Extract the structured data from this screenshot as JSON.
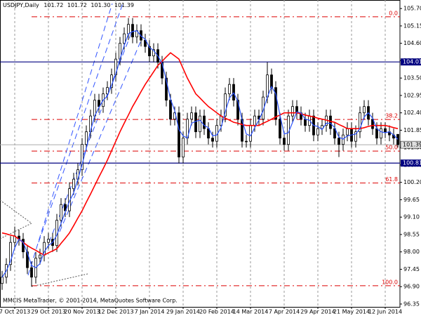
{
  "chart_data": {
    "type": "candlestick",
    "title": "USDJPY,Daily",
    "header_values": [
      "101.72",
      "101.72",
      "101.30",
      "101.39"
    ],
    "footer": "MMCIS MetaTrader, © 2001-2014, MetaQuotes Software Corp.",
    "categories": [
      null,
      null,
      null,
      "7 Oct 2013",
      null,
      null,
      null,
      null,
      null,
      null,
      null,
      "29 Oct 2013",
      null,
      null,
      null,
      null,
      null,
      null,
      null,
      "20 Nov 2013",
      null,
      null,
      null,
      null,
      null,
      null,
      null,
      "12 Dec 2013",
      null,
      null,
      null,
      null,
      null,
      null,
      null,
      "7 Jan 2014",
      null,
      null,
      null,
      null,
      null,
      null,
      null,
      "29 Jan 2014",
      null,
      null,
      null,
      null,
      null,
      null,
      null,
      "20 Feb 2014",
      null,
      null,
      null,
      null,
      null,
      null,
      null,
      "14 Mar 2014",
      null,
      null,
      null,
      null,
      null,
      null,
      null,
      "7 Apr 2014",
      null,
      null,
      null,
      null,
      null,
      null,
      null,
      "29 Apr 2014",
      null,
      null,
      null,
      null,
      null,
      null,
      null,
      "21 May 2014",
      null,
      null,
      null,
      null,
      null,
      null,
      null,
      "12 Jun 2014",
      null,
      null,
      null
    ],
    "open": [
      97.0,
      97.2,
      97.6,
      98.3,
      98.5,
      98.4,
      98.0,
      97.5,
      97.2,
      97.8,
      97.9,
      98.3,
      98.4,
      98.2,
      99.0,
      99.5,
      99.3,
      100.0,
      100.3,
      100.6,
      101.4,
      101.8,
      102.3,
      102.8,
      102.6,
      103.0,
      103.2,
      103.6,
      104.1,
      104.6,
      104.9,
      105.2,
      104.8,
      105.0,
      104.7,
      104.5,
      104.2,
      104.4,
      104.0,
      103.5,
      102.8,
      102.2,
      102.4,
      101.0,
      101.6,
      102.2,
      102.4,
      101.8,
      102.3,
      101.9,
      101.6,
      101.5,
      102.0,
      102.3,
      103.0,
      103.3,
      102.8,
      102.2,
      101.5,
      101.5,
      102.0,
      102.3,
      102.2,
      102.9,
      103.6,
      103.2,
      102.2,
      101.6,
      101.4,
      102.3,
      102.6,
      102.4,
      102.2,
      102.0,
      102.3,
      101.7,
      101.9,
      102.0,
      102.3,
      101.9,
      101.6,
      101.4,
      101.7,
      101.9,
      101.5,
      101.8,
      102.4,
      102.6,
      102.2,
      101.9,
      101.6,
      101.9,
      101.8,
      101.7,
      101.72
    ],
    "high": [
      97.4,
      97.8,
      98.5,
      98.8,
      98.7,
      98.6,
      98.2,
      97.7,
      98.0,
      98.1,
      98.5,
      98.6,
      98.6,
      99.2,
      99.7,
      99.7,
      100.2,
      100.5,
      100.8,
      101.6,
      102.0,
      102.5,
      103.0,
      103.0,
      103.2,
      103.4,
      103.8,
      104.3,
      104.8,
      105.1,
      105.4,
      105.4,
      105.2,
      105.2,
      104.9,
      104.7,
      104.6,
      104.6,
      104.2,
      103.7,
      103.0,
      102.6,
      102.6,
      101.8,
      102.4,
      102.6,
      102.6,
      102.5,
      102.5,
      102.1,
      101.8,
      102.2,
      102.5,
      103.2,
      103.5,
      103.5,
      103.0,
      102.4,
      101.7,
      102.2,
      102.5,
      102.5,
      103.1,
      104.0,
      103.8,
      103.4,
      102.4,
      101.8,
      102.5,
      102.8,
      102.8,
      102.6,
      102.4,
      102.5,
      102.5,
      102.1,
      102.2,
      102.5,
      102.5,
      102.1,
      101.8,
      101.9,
      102.1,
      102.1,
      102.0,
      102.6,
      102.8,
      102.8,
      102.4,
      102.1,
      102.1,
      102.1,
      102.0,
      101.9,
      101.72
    ],
    "low": [
      96.8,
      97.0,
      97.4,
      98.1,
      98.2,
      97.8,
      97.3,
      96.9,
      97.0,
      97.6,
      97.7,
      98.1,
      98.0,
      98.0,
      98.8,
      99.1,
      99.1,
      99.8,
      100.1,
      100.4,
      101.2,
      101.6,
      102.1,
      102.4,
      102.4,
      102.8,
      103.0,
      103.4,
      103.9,
      104.4,
      104.7,
      104.6,
      104.6,
      104.5,
      104.3,
      104.0,
      104.0,
      103.8,
      103.3,
      102.6,
      102.0,
      102.0,
      100.8,
      100.8,
      101.4,
      102.0,
      101.6,
      101.6,
      101.7,
      101.4,
      101.3,
      101.3,
      101.8,
      102.1,
      102.8,
      102.6,
      102.0,
      101.3,
      101.3,
      101.3,
      101.8,
      102.0,
      102.0,
      102.7,
      103.0,
      102.0,
      101.4,
      101.2,
      101.2,
      102.1,
      102.2,
      102.0,
      101.8,
      101.8,
      101.5,
      101.5,
      101.7,
      101.8,
      101.7,
      101.4,
      101.0,
      101.2,
      101.5,
      101.3,
      101.3,
      101.6,
      102.2,
      102.0,
      101.7,
      101.4,
      101.4,
      101.6,
      101.5,
      101.4,
      101.3
    ],
    "close": [
      97.2,
      97.6,
      98.3,
      98.5,
      98.4,
      98.0,
      97.5,
      97.2,
      97.8,
      97.9,
      98.3,
      98.4,
      98.2,
      99.0,
      99.5,
      99.3,
      100.0,
      100.3,
      100.6,
      101.4,
      101.8,
      102.3,
      102.8,
      102.6,
      103.0,
      103.2,
      103.6,
      104.1,
      104.6,
      104.9,
      105.2,
      104.8,
      105.0,
      104.7,
      104.5,
      104.2,
      104.4,
      104.0,
      103.5,
      102.8,
      102.2,
      102.4,
      101.0,
      101.6,
      102.2,
      102.4,
      101.8,
      102.3,
      101.9,
      101.6,
      101.5,
      102.0,
      102.3,
      103.0,
      103.3,
      102.8,
      102.2,
      101.5,
      101.5,
      102.0,
      102.3,
      102.2,
      102.9,
      103.6,
      103.2,
      102.2,
      101.6,
      101.4,
      102.3,
      102.6,
      102.4,
      102.2,
      102.0,
      102.3,
      101.7,
      101.9,
      102.0,
      102.3,
      101.9,
      101.6,
      101.4,
      101.7,
      101.9,
      101.5,
      101.8,
      102.4,
      102.6,
      102.2,
      101.9,
      101.6,
      101.9,
      101.8,
      101.7,
      101.6,
      101.39
    ],
    "lines": [
      {
        "color": "#ff0000",
        "values": [
          98.6,
          98.57,
          98.53,
          98.5,
          98.4,
          98.3,
          98.2,
          98.12,
          98.05,
          97.97,
          97.9,
          97.97,
          98.03,
          98.1,
          98.27,
          98.43,
          98.6,
          98.83,
          99.07,
          99.3,
          99.57,
          99.83,
          100.1,
          100.37,
          100.63,
          100.9,
          101.2,
          101.5,
          101.8,
          102.07,
          102.33,
          102.6,
          102.83,
          103.07,
          103.3,
          103.5,
          103.7,
          103.9,
          104.03,
          104.17,
          104.3,
          104.2,
          104.1,
          103.8,
          103.5,
          103.25,
          103.0,
          102.87,
          102.73,
          102.6,
          102.5,
          102.4,
          102.3,
          102.23,
          102.17,
          102.1,
          102.07,
          102.03,
          102.0,
          102.0,
          102.0,
          102.0,
          102.07,
          102.13,
          102.2,
          102.27,
          102.33,
          102.4,
          102.4,
          102.4,
          102.4,
          102.37,
          102.33,
          102.3,
          102.27,
          102.23,
          102.2,
          102.17,
          102.13,
          102.1,
          102.03,
          101.97,
          101.9,
          101.9,
          101.9,
          101.9,
          101.93,
          101.97,
          102.0,
          102.0,
          102.0,
          102.0,
          101.97,
          101.93,
          101.9
        ]
      },
      {
        "color": "#2a52ff",
        "values": [
          97.2,
          97.4,
          97.7,
          98.13,
          98.4,
          98.3,
          97.97,
          97.57,
          97.5,
          97.63,
          98.0,
          98.2,
          98.3,
          98.53,
          98.9,
          99.27,
          99.6,
          99.87,
          100.3,
          100.77,
          101.27,
          101.83,
          102.3,
          102.57,
          102.8,
          102.93,
          103.27,
          103.63,
          104.1,
          104.53,
          104.9,
          104.97,
          105.0,
          104.83,
          104.73,
          104.47,
          104.37,
          104.2,
          103.97,
          103.43,
          102.83,
          102.47,
          101.87,
          101.67,
          101.6,
          102.07,
          102.13,
          102.17,
          102.0,
          101.93,
          101.67,
          101.7,
          101.93,
          102.43,
          102.87,
          103.03,
          102.77,
          102.17,
          101.73,
          101.67,
          101.93,
          102.17,
          102.47,
          102.9,
          103.23,
          103.0,
          102.33,
          101.73,
          101.77,
          102.1,
          102.43,
          102.4,
          102.2,
          102.17,
          102.0,
          101.97,
          101.87,
          102.07,
          102.07,
          101.93,
          101.63,
          101.57,
          101.67,
          101.7,
          101.73,
          101.9,
          102.27,
          102.4,
          102.23,
          101.9,
          101.8,
          101.77,
          101.8,
          101.7,
          101.56
        ]
      }
    ],
    "levels": [
      104.01,
      100.81
    ],
    "level_color": "#000080",
    "bid": 101.39,
    "fib_color": "#dd0000",
    "fib_levels": [
      {
        "value": 105.44,
        "label": "0.0"
      },
      {
        "value": 102.19,
        "label": "38.2"
      },
      {
        "value": 101.19,
        "label": "50.0"
      },
      {
        "value": 100.18,
        "label": "61.8"
      },
      {
        "value": 96.93,
        "label": "100.0"
      }
    ],
    "ylim": [
      96.26,
      105.97
    ],
    "yticks": [
      {
        "value": 105.7,
        "label": "105.70"
      },
      105.15,
      {
        "value": 104.6,
        "label": "104.60"
      },
      104.05,
      {
        "value": 103.5,
        "label": "103.50"
      },
      102.95,
      {
        "value": 102.4,
        "label": "102.40"
      },
      101.85,
      {
        "value": 101.3,
        "label": "101.30"
      },
      100.75,
      {
        "value": 100.2,
        "label": "100.20"
      },
      99.65,
      {
        "value": 99.1,
        "label": "99.10"
      },
      98.55,
      {
        "value": 98.0,
        "label": "98.00"
      },
      97.45,
      {
        "value": 96.9,
        "label": "96.90"
      },
      96.35
    ],
    "grid": true
  }
}
